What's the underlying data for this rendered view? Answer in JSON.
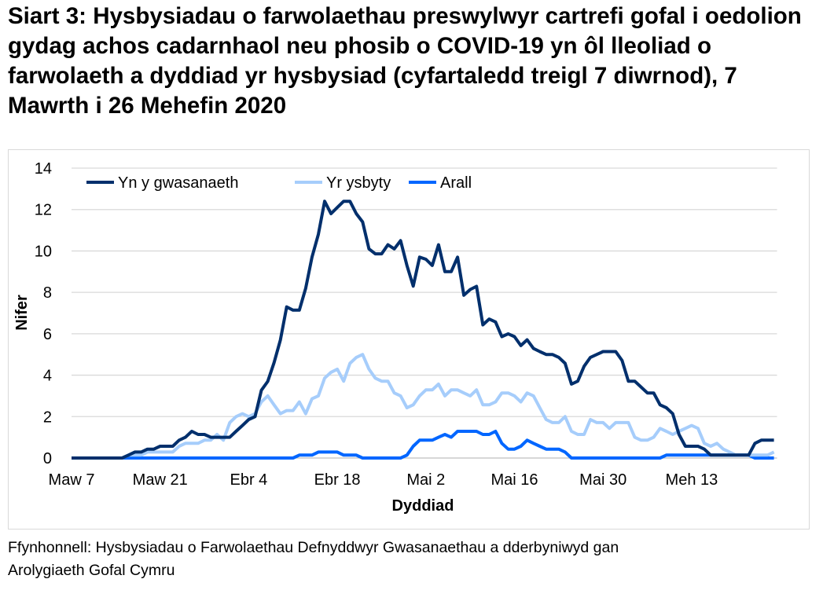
{
  "title": "Siart 3: Hysbysiadau o farwolaethau preswylwyr cartrefi gofal i oedolion gydag achos cadarnhaol neu phosib o COVID-19 yn ôl lleoliad o farwolaeth a dyddiad yr hysbysiad (cyfartaledd treigl 7 diwrnod), 7 Mawrth i 26 Mehefin 2020",
  "footer": {
    "line1": "Ffynhonnell: Hysbysiadau o Farwolaethau Defnyddwyr Gwasanaethau a dderbyniwyd gan",
    "line2": "Arolygiaeth Gofal Cymru"
  },
  "chart_data": {
    "type": "line",
    "xlabel": "Dyddiad",
    "ylabel": "Nifer",
    "x_start": "2020-03-07",
    "x_end": "2020-06-26",
    "x_ticks": [
      {
        "label": "Maw 7",
        "date": "2020-03-07"
      },
      {
        "label": "Maw 21",
        "date": "2020-03-21"
      },
      {
        "label": "Ebr 4",
        "date": "2020-04-04"
      },
      {
        "label": "Ebr 18",
        "date": "2020-04-18"
      },
      {
        "label": "Mai 2",
        "date": "2020-05-02"
      },
      {
        "label": "Mai 16",
        "date": "2020-05-16"
      },
      {
        "label": "Mai 30",
        "date": "2020-05-30"
      },
      {
        "label": "Meh 13",
        "date": "2020-06-13"
      }
    ],
    "ylim": [
      0,
      14
    ],
    "y_ticks": [
      0,
      2,
      4,
      6,
      8,
      10,
      12,
      14
    ],
    "grid": true,
    "legend_position": "top-left",
    "series": [
      {
        "name": "Yn y gwasanaeth",
        "color": "#002f6c",
        "values": [
          0,
          0,
          0,
          0,
          0,
          0,
          0,
          0,
          0,
          0.14,
          0.29,
          0.29,
          0.43,
          0.43,
          0.57,
          0.57,
          0.57,
          0.86,
          1.0,
          1.29,
          1.14,
          1.14,
          1.0,
          1.0,
          1.0,
          1.0,
          1.29,
          1.57,
          1.86,
          2.0,
          3.27,
          3.7,
          4.6,
          5.7,
          7.3,
          7.14,
          7.14,
          8.2,
          9.7,
          10.8,
          12.4,
          11.8,
          12.1,
          12.4,
          12.4,
          11.8,
          11.4,
          10.1,
          9.86,
          9.86,
          10.3,
          10.1,
          10.5,
          9.3,
          8.3,
          9.7,
          9.6,
          9.3,
          10.3,
          9.0,
          9.0,
          9.7,
          7.86,
          8.14,
          8.29,
          6.43,
          6.71,
          6.57,
          5.86,
          6.0,
          5.86,
          5.43,
          5.71,
          5.29,
          5.14,
          5.0,
          5.0,
          4.86,
          4.57,
          3.57,
          3.71,
          4.43,
          4.86,
          5.0,
          5.14,
          5.14,
          5.14,
          4.71,
          3.71,
          3.71,
          3.43,
          3.14,
          3.14,
          2.57,
          2.43,
          2.14,
          1.14,
          0.57,
          0.57,
          0.57,
          0.43,
          0.14,
          0.14,
          0.14,
          0.14,
          0.14,
          0.14,
          0.14,
          0.71,
          0.86,
          0.86,
          0.86
        ]
      },
      {
        "name": "Yr ysbyty",
        "color": "#a6cdfb",
        "values": [
          0,
          0,
          0,
          0,
          0,
          0,
          0,
          0,
          0,
          0.14,
          0.14,
          0.14,
          0.29,
          0.29,
          0.29,
          0.29,
          0.29,
          0.57,
          0.71,
          0.71,
          0.71,
          0.86,
          0.86,
          1.14,
          0.86,
          1.71,
          2.0,
          2.14,
          2.0,
          2.14,
          2.71,
          3.0,
          2.57,
          2.14,
          2.29,
          2.29,
          2.71,
          2.14,
          2.86,
          3.0,
          3.86,
          4.14,
          4.29,
          3.71,
          4.57,
          4.86,
          5.0,
          4.29,
          3.86,
          3.71,
          3.71,
          3.14,
          3.0,
          2.43,
          2.57,
          3.0,
          3.29,
          3.29,
          3.57,
          3.0,
          3.29,
          3.29,
          3.14,
          3.0,
          3.29,
          2.57,
          2.57,
          2.71,
          3.14,
          3.14,
          3.0,
          2.71,
          3.14,
          3.0,
          2.43,
          1.86,
          1.71,
          1.71,
          2.0,
          1.29,
          1.14,
          1.14,
          1.86,
          1.71,
          1.71,
          1.43,
          1.71,
          1.71,
          1.71,
          1.0,
          0.86,
          0.86,
          1.0,
          1.43,
          1.29,
          1.14,
          1.29,
          1.43,
          1.57,
          1.43,
          0.71,
          0.57,
          0.71,
          0.43,
          0.29,
          0.14,
          0.14,
          0.14,
          0.14,
          0.14,
          0.14,
          0.29
        ]
      },
      {
        "name": "Arall",
        "color": "#0066ff",
        "values": [
          0,
          0,
          0,
          0,
          0,
          0,
          0,
          0,
          0,
          0,
          0,
          0,
          0,
          0,
          0,
          0,
          0,
          0,
          0,
          0,
          0,
          0,
          0,
          0,
          0,
          0,
          0,
          0,
          0,
          0,
          0,
          0,
          0,
          0,
          0,
          0,
          0.14,
          0.14,
          0.14,
          0.29,
          0.29,
          0.29,
          0.29,
          0.14,
          0.14,
          0.14,
          0,
          0,
          0,
          0,
          0,
          0,
          0,
          0.14,
          0.57,
          0.86,
          0.86,
          0.86,
          1.0,
          1.14,
          1.0,
          1.29,
          1.29,
          1.29,
          1.29,
          1.14,
          1.14,
          1.29,
          0.71,
          0.43,
          0.43,
          0.57,
          0.86,
          0.71,
          0.57,
          0.43,
          0.43,
          0.43,
          0.29,
          0,
          0,
          0,
          0,
          0,
          0,
          0,
          0,
          0,
          0,
          0,
          0,
          0,
          0,
          0,
          0.14,
          0.14,
          0.14,
          0.14,
          0.14,
          0.14,
          0.14,
          0.14,
          0.14,
          0.14,
          0.14,
          0.14,
          0.14,
          0.14,
          0,
          0,
          0,
          0
        ]
      }
    ]
  }
}
